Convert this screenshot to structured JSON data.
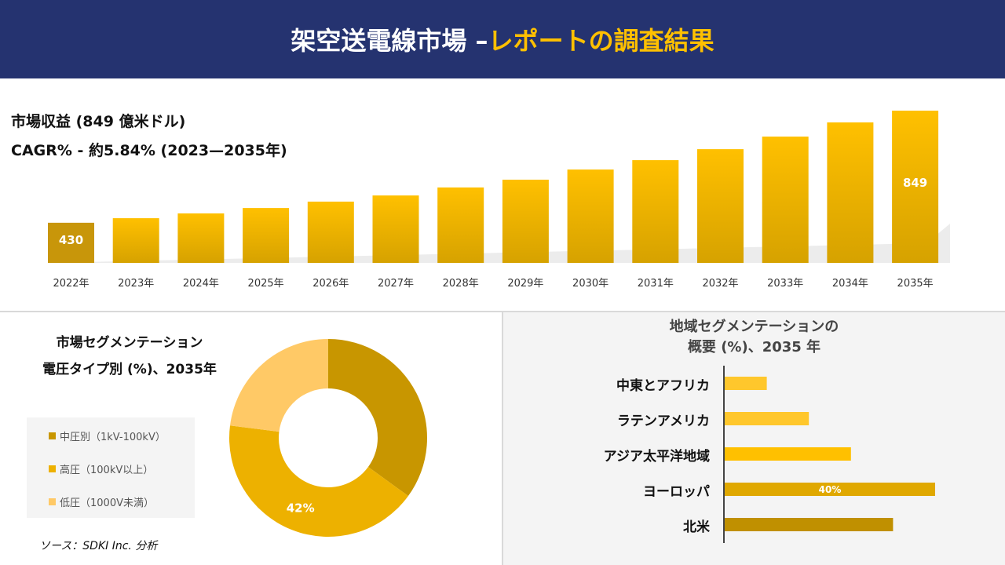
{
  "header": {
    "title_main": "架空送電線市場 –",
    "title_accent": "レポートの調査結果"
  },
  "stats": {
    "revenue": "市場収益 (849 億米ドル)",
    "cagr": "CAGR% - 約5.84% (2023—2035年)"
  },
  "colors": {
    "header_bg": "#253370",
    "accent": "#FFC000"
  },
  "chart_data": [
    {
      "type": "bar",
      "categories": [
        "2022年",
        "2023年",
        "2024年",
        "2025年",
        "2026年",
        "2027年",
        "2028年",
        "2029年",
        "2030年",
        "2031年",
        "2032年",
        "2033年",
        "2034年",
        "2035年"
      ],
      "values": [
        430,
        447,
        465,
        485,
        509,
        532,
        562,
        591,
        629,
        664,
        705,
        752,
        805,
        849
      ],
      "data_labels": {
        "0": "430",
        "13": "849"
      },
      "unit": "億米ドル",
      "grid": false
    },
    {
      "type": "pie",
      "variant": "donut",
      "title": "市場セグメンテーション 電圧タイプ別 (%)、2035年",
      "labels": [
        "中圧別（1kV-100kV）",
        "高圧（100kV以上）",
        "低圧（1000V未満）"
      ],
      "values": [
        35,
        42,
        23
      ],
      "colors": [
        "#C89600",
        "#EDB100",
        "#FFC966"
      ],
      "data_labels": {
        "1": "42%"
      },
      "legend": "left"
    },
    {
      "type": "bar",
      "orientation": "horizontal",
      "title_line1": "地域セグメンテーションの",
      "title_line2": "概要 (%)、2035 年",
      "categories": [
        "中東とアフリカ",
        "ラテンアメリカ",
        "アジア太平洋地域",
        "ヨーロッパ",
        "北米"
      ],
      "values": [
        8,
        16,
        24,
        40,
        32
      ],
      "colors": [
        "#FFC72C",
        "#FFC72C",
        "#FFC000",
        "#E0A800",
        "#C09000"
      ],
      "data_labels": {
        "3": "40%"
      }
    }
  ],
  "source": "ソース：SDKI Inc. 分析"
}
